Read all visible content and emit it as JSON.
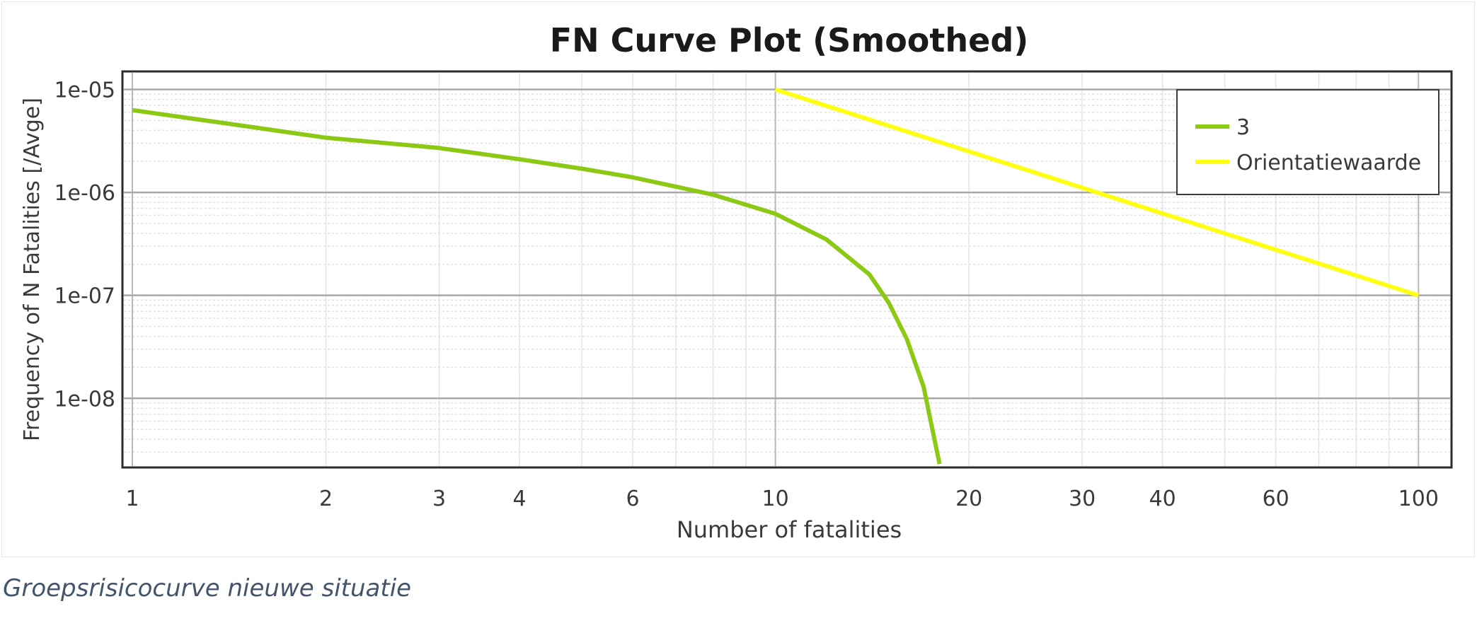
{
  "chart_data": {
    "type": "line",
    "title": "FN Curve Plot (Smoothed)",
    "xlabel": "Number of fatalities",
    "ylabel": "Frequency of N Fatalities [/Avge]",
    "x_scale": "log",
    "y_scale": "log",
    "xlim": [
      0.97,
      112
    ],
    "ylim": [
      2.2e-09,
      1.45e-05
    ],
    "x_ticks": [
      1,
      2,
      3,
      4,
      6,
      10,
      20,
      30,
      40,
      60,
      100
    ],
    "x_tick_labels": [
      "1",
      "2",
      "3",
      "4",
      "6",
      "10",
      "20",
      "30",
      "40",
      "60",
      "100"
    ],
    "y_ticks": [
      1e-05,
      1e-06,
      1e-07,
      1e-08
    ],
    "y_tick_labels": [
      "1e-05",
      "1e-06",
      "1e-07",
      "1e-08"
    ],
    "grid": true,
    "legend_position": "top-right",
    "series": [
      {
        "name": "3",
        "color": "#8cc914",
        "x": [
          1,
          1.5,
          2,
          3,
          4,
          5,
          6,
          8,
          10,
          12,
          14,
          15,
          16,
          17,
          18
        ],
        "y": [
          6.3e-06,
          4.4e-06,
          3.4e-06,
          2.7e-06,
          2.1e-06,
          1.7e-06,
          1.4e-06,
          9.5e-07,
          6.2e-07,
          3.5e-07,
          1.6e-07,
          8.5e-08,
          3.8e-08,
          1.3e-08,
          2.3e-09
        ]
      },
      {
        "name": "Orientatiewaarde",
        "color": "#ffff14",
        "x": [
          10,
          100
        ],
        "y": [
          1e-05,
          1e-07
        ]
      }
    ]
  },
  "caption": "Groepsrisicocurve nieuwe situatie"
}
